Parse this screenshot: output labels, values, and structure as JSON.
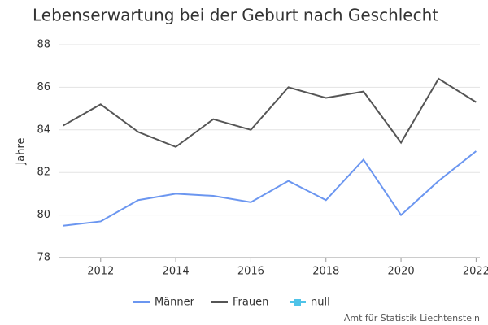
{
  "chart_data": {
    "type": "line",
    "title": "Lebenserwartung bei der Geburt nach Geschlecht",
    "y_label": "Jahre",
    "source": "Amt für Statistik Liechtenstein",
    "x": [
      2011,
      2012,
      2013,
      2014,
      2015,
      2016,
      2017,
      2018,
      2019,
      2020,
      2021,
      2022
    ],
    "series": [
      {
        "name": "Männer",
        "color": "#6b96f0",
        "values": [
          79.5,
          79.7,
          80.7,
          81.0,
          80.9,
          80.6,
          81.6,
          80.7,
          82.6,
          80.0,
          81.6,
          83.0
        ]
      },
      {
        "name": "Frauen",
        "color": "#555555",
        "values": [
          84.2,
          85.2,
          83.9,
          83.2,
          84.5,
          84.0,
          86.0,
          85.5,
          85.8,
          83.4,
          86.4,
          85.3
        ]
      },
      {
        "name": "null",
        "color": "#4fc3e8",
        "values": [
          null,
          null,
          null,
          null,
          null,
          null,
          null,
          null,
          null,
          null,
          null,
          null
        ]
      }
    ],
    "xlim": [
      2010.9,
      2022.1
    ],
    "xticks": [
      2012,
      2014,
      2016,
      2018,
      2020,
      2022
    ],
    "ylim": [
      78,
      88
    ],
    "yticks": [
      78,
      80,
      82,
      84,
      86,
      88
    ],
    "grid": true,
    "legend": "bottom"
  }
}
